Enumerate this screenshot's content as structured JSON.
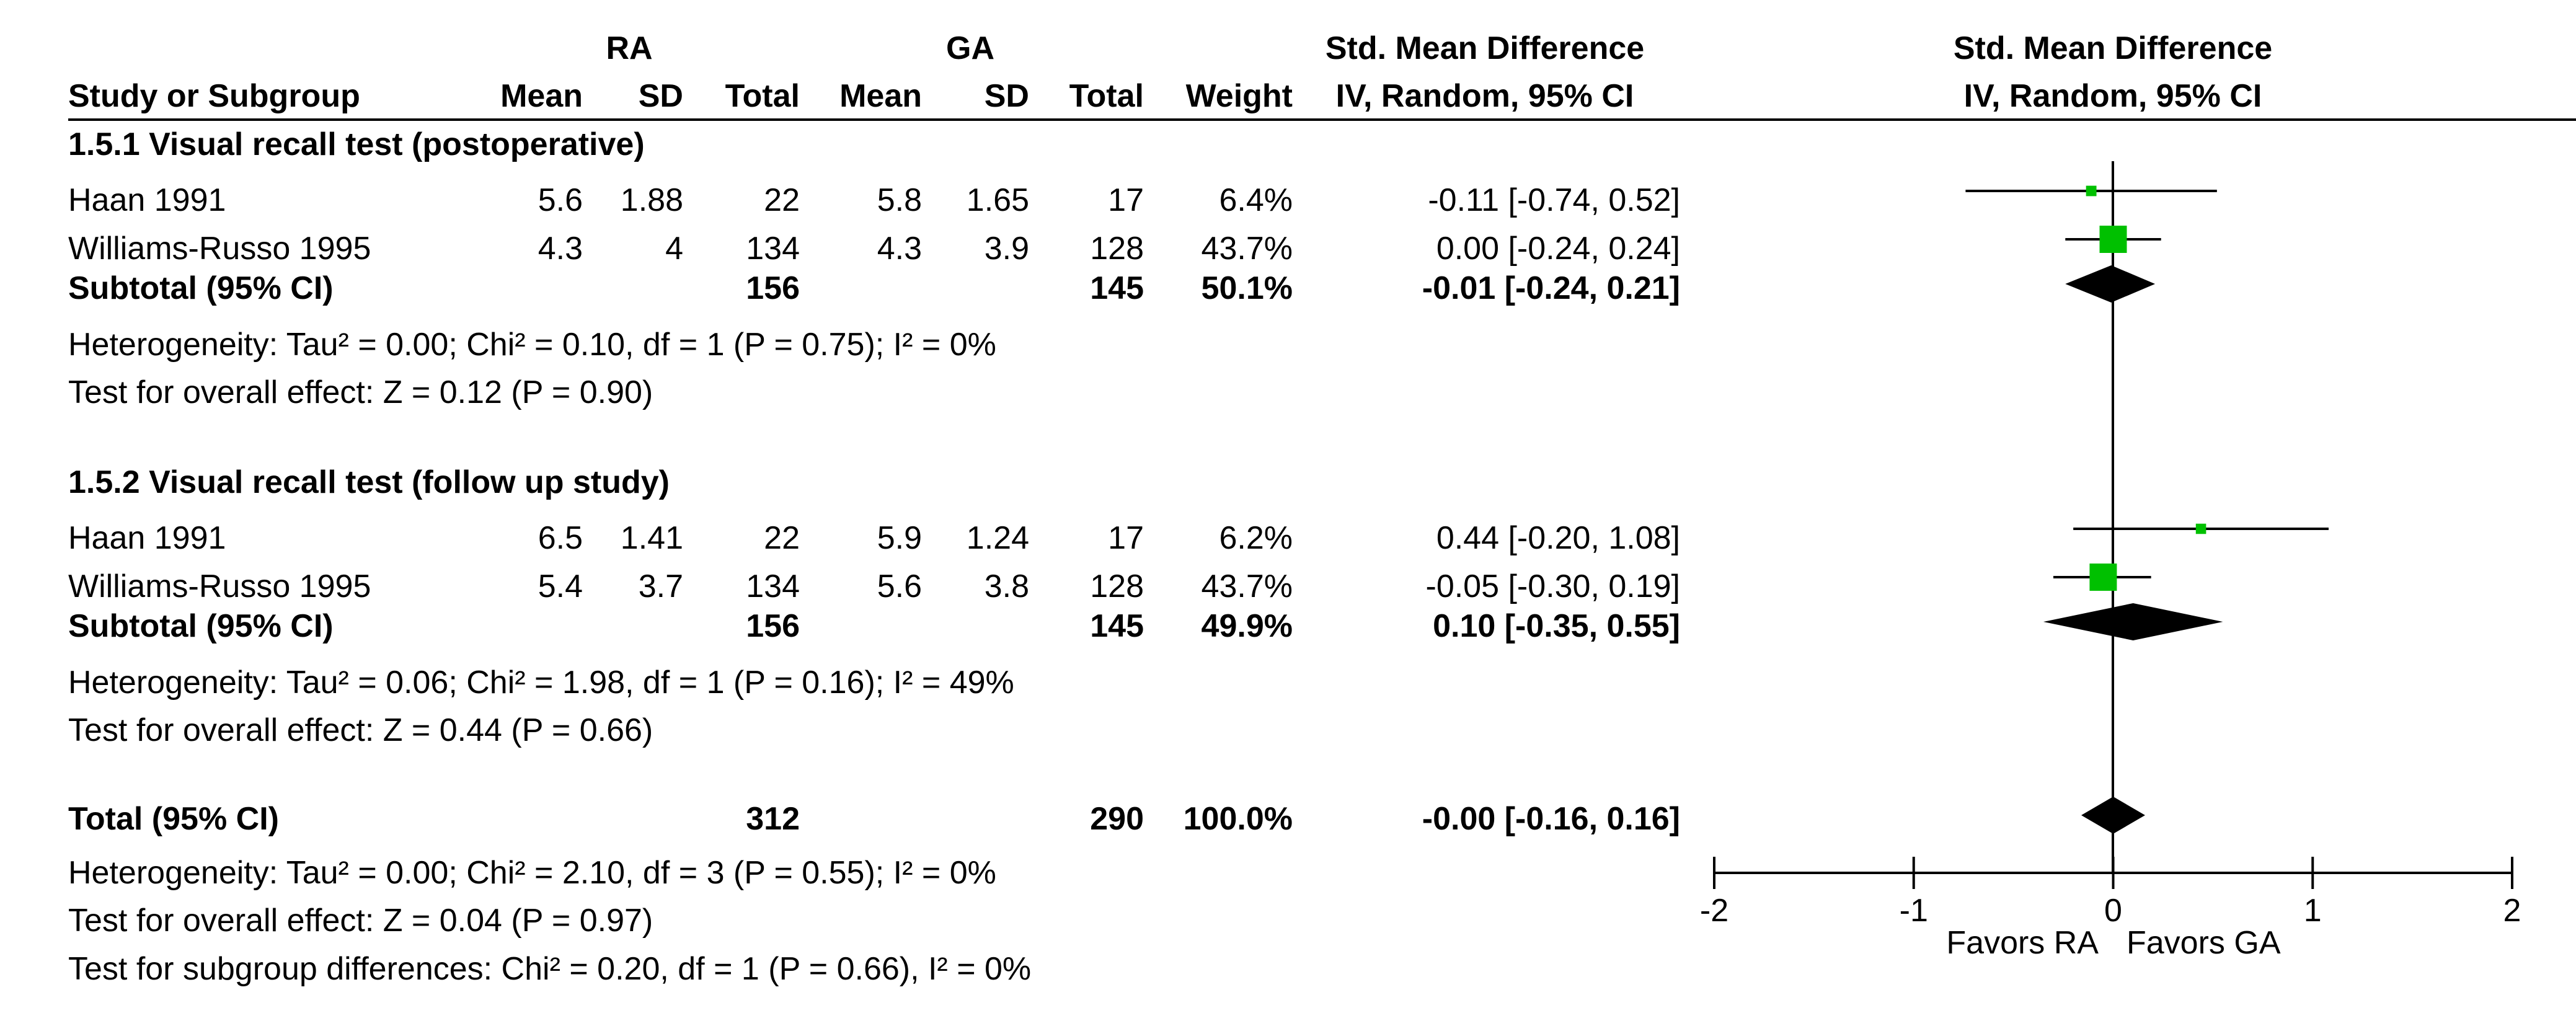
{
  "chart_data": {
    "type": "forest",
    "headers": {
      "group1": "RA",
      "group2": "GA",
      "col_study": "Study or Subgroup",
      "col_mean1": "Mean",
      "col_sd1": "SD",
      "col_total1": "Total",
      "col_mean2": "Mean",
      "col_sd2": "SD",
      "col_total2": "Total",
      "col_weight": "Weight",
      "smd_title": "Std. Mean Difference",
      "smd_sub": "IV, Random, 95% CI",
      "plot_title": "Std. Mean Difference",
      "plot_sub": "IV, Random, 95% CI"
    },
    "subgroups": [
      {
        "title": "1.5.1 Visual recall test (postoperative)",
        "studies": [
          {
            "name": "Haan 1991",
            "mean1": "5.6",
            "sd1": "1.88",
            "total1": "22",
            "mean2": "5.8",
            "sd2": "1.65",
            "total2": "17",
            "weight": "6.4%",
            "ci_text": "-0.11 [-0.74, 0.52]",
            "est": -0.11,
            "lo": -0.74,
            "hi": 0.52,
            "w": 6.4
          },
          {
            "name": "Williams-Russo 1995",
            "mean1": "4.3",
            "sd1": "4",
            "total1": "134",
            "mean2": "4.3",
            "sd2": "3.9",
            "total2": "128",
            "weight": "43.7%",
            "ci_text": "0.00 [-0.24, 0.24]",
            "est": 0.0,
            "lo": -0.24,
            "hi": 0.24,
            "w": 43.7
          }
        ],
        "subtotal": {
          "label": "Subtotal (95% CI)",
          "total1": "156",
          "total2": "145",
          "weight": "50.1%",
          "ci_text": "-0.01 [-0.24, 0.21]",
          "est": -0.01,
          "lo": -0.24,
          "hi": 0.21
        },
        "heterogeneity": "Heterogeneity: Tau² = 0.00; Chi² = 0.10, df = 1 (P = 0.75); I² = 0%",
        "overall": "Test for overall effect: Z = 0.12 (P = 0.90)"
      },
      {
        "title": "1.5.2 Visual recall test (follow up study)",
        "studies": [
          {
            "name": "Haan 1991",
            "mean1": "6.5",
            "sd1": "1.41",
            "total1": "22",
            "mean2": "5.9",
            "sd2": "1.24",
            "total2": "17",
            "weight": "6.2%",
            "ci_text": "0.44 [-0.20, 1.08]",
            "est": 0.44,
            "lo": -0.2,
            "hi": 1.08,
            "w": 6.2
          },
          {
            "name": "Williams-Russo 1995",
            "mean1": "5.4",
            "sd1": "3.7",
            "total1": "134",
            "mean2": "5.6",
            "sd2": "3.8",
            "total2": "128",
            "weight": "43.7%",
            "ci_text": "-0.05 [-0.30, 0.19]",
            "est": -0.05,
            "lo": -0.3,
            "hi": 0.19,
            "w": 43.7
          }
        ],
        "subtotal": {
          "label": "Subtotal (95% CI)",
          "total1": "156",
          "total2": "145",
          "weight": "49.9%",
          "ci_text": "0.10 [-0.35, 0.55]",
          "est": 0.1,
          "lo": -0.35,
          "hi": 0.55
        },
        "heterogeneity": "Heterogeneity: Tau² = 0.06; Chi² = 1.98, df = 1 (P = 0.16); I² = 49%",
        "overall": "Test for overall effect: Z = 0.44 (P = 0.66)"
      }
    ],
    "total": {
      "label": "Total (95% CI)",
      "total1": "312",
      "total2": "290",
      "weight": "100.0%",
      "ci_text": "-0.00 [-0.16, 0.16]",
      "est": 0.0,
      "lo": -0.16,
      "hi": 0.16,
      "heterogeneity": "Heterogeneity: Tau² = 0.00; Chi² = 2.10, df = 3 (P = 0.55); I² = 0%",
      "overall": "Test for overall effect: Z = 0.04 (P = 0.97)",
      "subgroup_diff": "Test for subgroup differences: Chi² = 0.20, df = 1 (P = 0.66), I² = 0%"
    },
    "axis": {
      "min": -2,
      "max": 2,
      "ticks": [
        -2,
        -1,
        0,
        1,
        2
      ],
      "tick_labels": [
        "-2",
        "-1",
        "0",
        "1",
        "2"
      ],
      "label_left": "Favors RA",
      "label_right": "Favors GA"
    },
    "colors": {
      "marker": "#00c000",
      "diamond": "#000000",
      "line": "#000000"
    }
  }
}
